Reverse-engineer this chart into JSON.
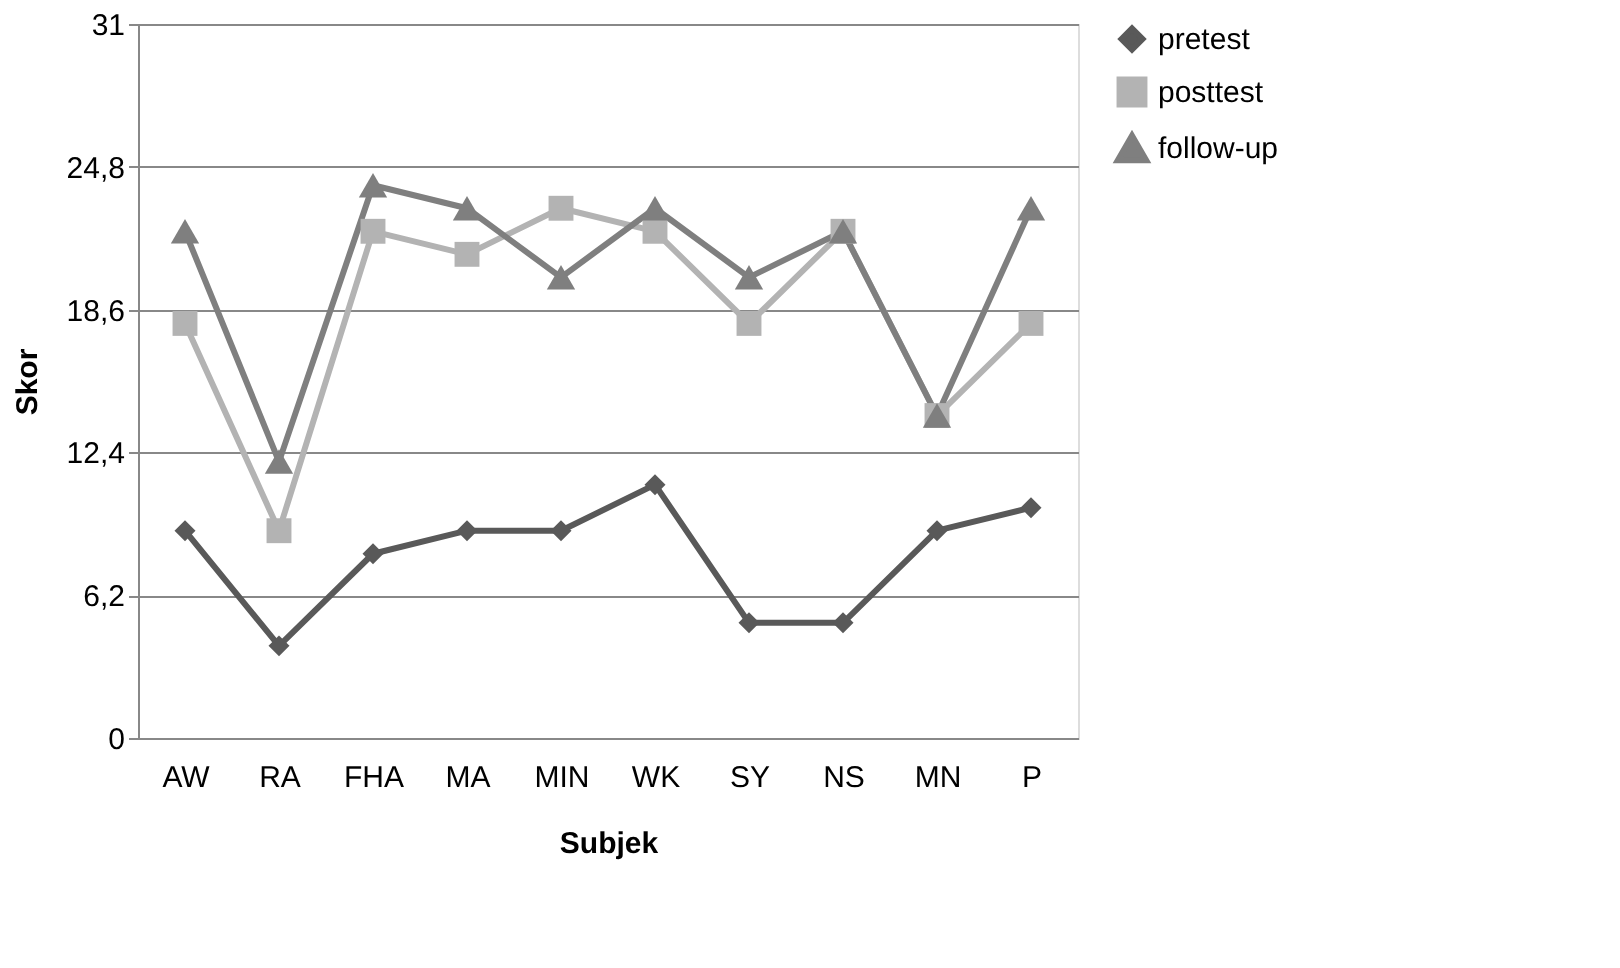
{
  "chart_data": {
    "type": "line",
    "xlabel": "Subjek",
    "ylabel": "Skor",
    "categories": [
      "AW",
      "RA",
      "FHA",
      "MA",
      "MIN",
      "WK",
      "SY",
      "NS",
      "MN",
      "P"
    ],
    "series": [
      {
        "name": "pretest",
        "color": "#595959",
        "marker": "diamond",
        "values": [
          9,
          4,
          8,
          9,
          9,
          11,
          5,
          5,
          9,
          10
        ]
      },
      {
        "name": "posttest",
        "color": "#b3b3b3",
        "marker": "square",
        "values": [
          18,
          9,
          22,
          21,
          23,
          22,
          18,
          22,
          14,
          18
        ]
      },
      {
        "name": "follow-up",
        "color": "#7f7f7f",
        "marker": "triangle",
        "values": [
          22,
          12,
          24,
          23,
          20,
          23,
          20,
          22,
          14,
          23
        ]
      }
    ],
    "ylim": [
      0,
      31
    ],
    "yticks": [
      0,
      {
        "value": 6.2,
        "label": "6,2"
      },
      {
        "value": 12.4,
        "label": "12,4"
      },
      {
        "value": 18.6,
        "label": "18,6"
      },
      {
        "value": 24.8,
        "label": "24,8"
      },
      31
    ],
    "grid": "y",
    "legend": "right",
    "line_style": "solid"
  }
}
